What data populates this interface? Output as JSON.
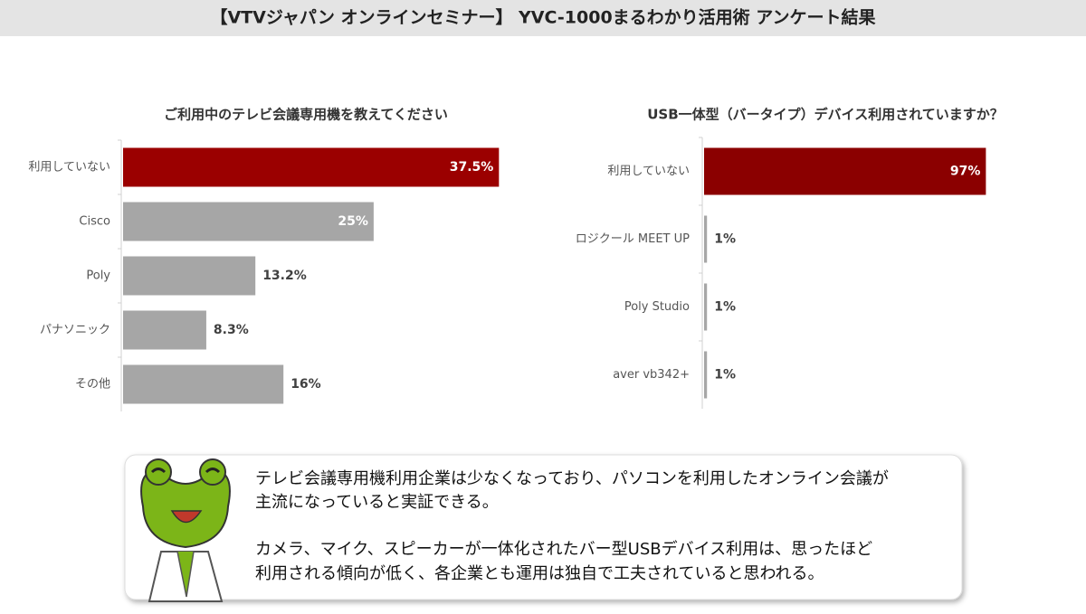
{
  "title": "【VTVジャパン オンラインセミナー】 YVC-1000まるわかり活用術 アンケート結果",
  "chart_data": [
    {
      "type": "barh",
      "title": "ご利用中のテレビ会議専用機を教えてください",
      "categories": [
        "利用していない",
        "Cisco",
        "Poly",
        "パナソニック",
        "その他"
      ],
      "values": [
        37.5,
        25,
        13.2,
        8.3,
        16
      ],
      "value_labels": [
        "37.5%",
        "25%",
        "13.2%",
        "8.3%",
        "16%"
      ],
      "colors": [
        "#9b0000",
        "#a6a6a6",
        "#a6a6a6",
        "#a6a6a6",
        "#a6a6a6"
      ],
      "xlim": [
        0,
        40
      ]
    },
    {
      "type": "barh",
      "title": "USB一体型（バータイプ）デバイス利用されていますか？",
      "categories": [
        "利用していない",
        "ロジクール MEET UP",
        "Poly Studio",
        "aver vb342+"
      ],
      "values": [
        97,
        1,
        1,
        1
      ],
      "value_labels": [
        "97%",
        "1%",
        "1%",
        "1%"
      ],
      "colors": [
        "#8b0000",
        "#a6a6a6",
        "#a6a6a6",
        "#a6a6a6"
      ],
      "xlim": [
        0,
        100
      ]
    }
  ],
  "comment": [
    "テレビ会議専用機利用企業は少なくなっており、パソコンを利用したオンライン会議が",
    "主流になっていると実証できる。",
    "カメラ、マイク、スピーカーが一体化されたバー型USBデバイス利用は、思ったほど",
    "利用される傾向が低く、各企業とも運用は独自で工夫されていると思われる。"
  ]
}
